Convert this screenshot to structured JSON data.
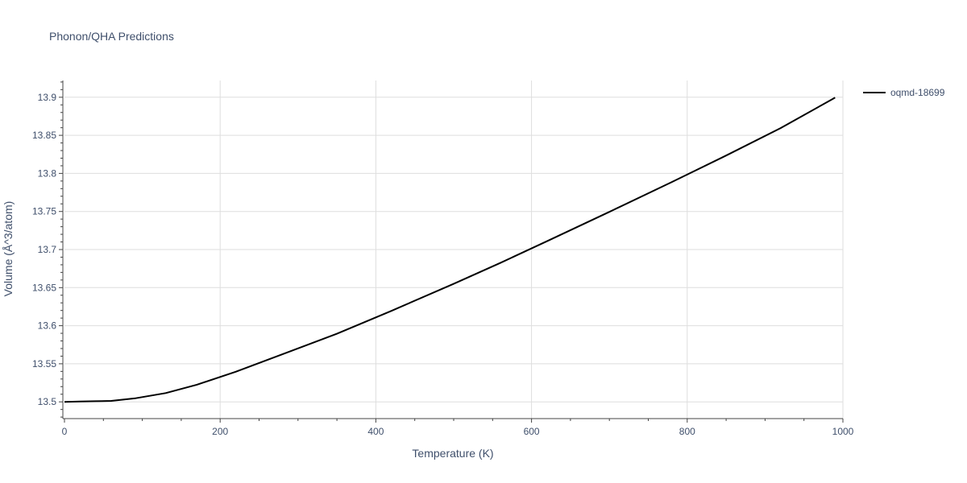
{
  "chart_data": {
    "type": "line",
    "title": "Phonon/QHA Predictions",
    "xlabel": "Temperature (K)",
    "ylabel": "Volume (Å^3/atom)",
    "xlim": [
      0,
      1000
    ],
    "ylim": [
      13.478,
      13.922
    ],
    "x_ticks": [
      0,
      200,
      400,
      600,
      800,
      1000
    ],
    "x_tick_labels": [
      "0",
      "200",
      "400",
      "600",
      "800",
      "1000"
    ],
    "y_ticks": [
      13.5,
      13.55,
      13.6,
      13.65,
      13.7,
      13.75,
      13.8,
      13.85,
      13.9
    ],
    "y_tick_labels": [
      "13.5",
      "13.55",
      "13.6",
      "13.65",
      "13.7",
      "13.75",
      "13.8",
      "13.85",
      "13.9"
    ],
    "grid": true,
    "legend_position": "top-right",
    "series": [
      {
        "name": "oqmd-18699",
        "color": "#000000",
        "x": [
          0,
          20,
          40,
          60,
          90,
          130,
          170,
          220,
          280,
          350,
          420,
          500,
          560,
          620,
          700,
          780,
          850,
          920,
          990
        ],
        "values": [
          13.5,
          13.5005,
          13.5008,
          13.5012,
          13.5045,
          13.5115,
          13.5225,
          13.5395,
          13.5625,
          13.5895,
          13.6195,
          13.655,
          13.6825,
          13.711,
          13.7495,
          13.7885,
          13.8235,
          13.8595,
          13.8995
        ]
      }
    ]
  }
}
